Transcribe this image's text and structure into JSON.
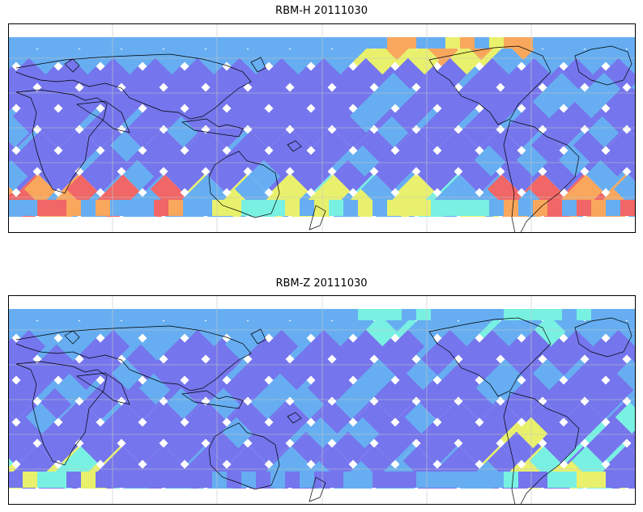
{
  "panels": [
    {
      "title": "RBM-H 20111030",
      "field": "H"
    },
    {
      "title": "RBM-Z 20111030",
      "field": "Z"
    }
  ],
  "colors": {
    "track_low": "#6a6aec",
    "track_mid": "#5aa8f0",
    "cyan": "#6ef0e0",
    "yellow": "#e8f060",
    "orange": "#f8a050",
    "red": "#f05a5a",
    "coastline": "#000000",
    "graticule": "#c8c8c8"
  },
  "graticule": {
    "lon_step_deg": 30,
    "lat_step_deg": 15
  }
}
